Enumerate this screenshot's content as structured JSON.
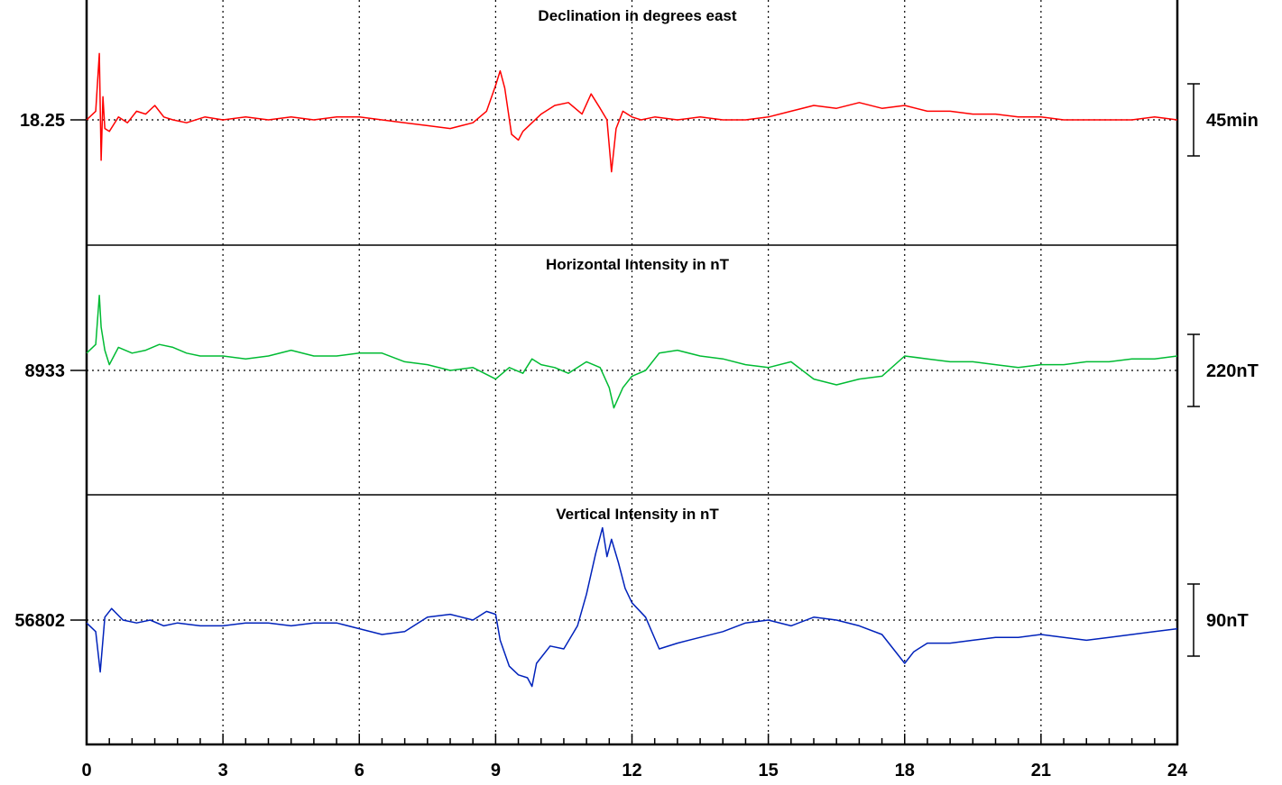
{
  "chart_data": {
    "type": "line",
    "x_axis": {
      "range": [
        0,
        24
      ],
      "major_ticks": [
        0,
        3,
        6,
        9,
        12,
        15,
        18,
        21,
        24
      ],
      "tick_labels": [
        "0",
        "3",
        "6",
        "9",
        "12",
        "15",
        "18",
        "21",
        "24"
      ],
      "minor_tick_step": 0.5,
      "grid": "dotted vertical lines at major ticks"
    },
    "panels": [
      {
        "title": "Declination in degrees east",
        "baseline_label": "18.25",
        "scale_label": "45min",
        "color": "#ff0000",
        "series": {
          "x": [
            0,
            0.2,
            0.28,
            0.32,
            0.36,
            0.4,
            0.5,
            0.7,
            0.9,
            1.1,
            1.3,
            1.5,
            1.7,
            1.9,
            2.2,
            2.6,
            3,
            3.5,
            4,
            4.5,
            5,
            5.5,
            6,
            6.5,
            7,
            7.5,
            8,
            8.5,
            8.8,
            9,
            9.1,
            9.2,
            9.35,
            9.5,
            9.6,
            9.8,
            10,
            10.3,
            10.6,
            10.9,
            11.1,
            11.3,
            11.45,
            11.55,
            11.65,
            11.8,
            12,
            12.2,
            12.5,
            13,
            13.5,
            14,
            14.5,
            15,
            15.5,
            16,
            16.5,
            17,
            17.5,
            18,
            18.5,
            19,
            19.5,
            20,
            20.5,
            21,
            21.5,
            22,
            22.5,
            23,
            23.5,
            24
          ],
          "y": [
            0.0,
            0.3,
            2.3,
            -1.4,
            0.8,
            -0.3,
            -0.4,
            0.1,
            -0.1,
            0.3,
            0.2,
            0.5,
            0.1,
            0.0,
            -0.1,
            0.1,
            0.0,
            0.1,
            0.0,
            0.1,
            0.0,
            0.1,
            0.1,
            0.0,
            -0.1,
            -0.2,
            -0.3,
            -0.1,
            0.3,
            1.2,
            1.7,
            1.1,
            -0.5,
            -0.7,
            -0.4,
            -0.1,
            0.2,
            0.5,
            0.6,
            0.2,
            0.9,
            0.4,
            0.0,
            -1.8,
            -0.3,
            0.3,
            0.1,
            0.0,
            0.1,
            0.0,
            0.1,
            0.0,
            0.0,
            0.1,
            0.3,
            0.5,
            0.4,
            0.6,
            0.4,
            0.5,
            0.3,
            0.3,
            0.2,
            0.2,
            0.1,
            0.1,
            0.0,
            0.0,
            0.0,
            0.0,
            0.1,
            0.0
          ]
        }
      },
      {
        "title": "Horizontal Intensity in nT",
        "baseline_label": "8933",
        "scale_label": "220nT",
        "color": "#00bb33",
        "series": {
          "x": [
            0,
            0.2,
            0.28,
            0.32,
            0.4,
            0.5,
            0.7,
            1.0,
            1.3,
            1.6,
            1.9,
            2.2,
            2.5,
            3,
            3.5,
            4,
            4.5,
            5,
            5.5,
            6,
            6.5,
            7,
            7.5,
            8,
            8.5,
            9,
            9.3,
            9.6,
            9.8,
            10,
            10.3,
            10.6,
            11,
            11.3,
            11.5,
            11.6,
            11.8,
            12,
            12.3,
            12.6,
            13,
            13.5,
            14,
            14.5,
            15,
            15.5,
            16,
            16.5,
            17,
            17.5,
            18,
            18.5,
            19,
            19.5,
            20,
            20.5,
            21,
            21.5,
            22,
            22.5,
            23,
            23.5,
            24
          ],
          "y": [
            0.6,
            0.9,
            2.6,
            1.5,
            0.7,
            0.2,
            0.8,
            0.6,
            0.7,
            0.9,
            0.8,
            0.6,
            0.5,
            0.5,
            0.4,
            0.5,
            0.7,
            0.5,
            0.5,
            0.6,
            0.6,
            0.3,
            0.2,
            0.0,
            0.1,
            -0.3,
            0.1,
            -0.1,
            0.4,
            0.2,
            0.1,
            -0.1,
            0.3,
            0.1,
            -0.6,
            -1.3,
            -0.6,
            -0.2,
            0.0,
            0.6,
            0.7,
            0.5,
            0.4,
            0.2,
            0.1,
            0.3,
            -0.3,
            -0.5,
            -0.3,
            -0.2,
            0.5,
            0.4,
            0.3,
            0.3,
            0.2,
            0.1,
            0.2,
            0.2,
            0.3,
            0.3,
            0.4,
            0.4,
            0.5
          ]
        }
      },
      {
        "title": "Vertical Intensity in nT",
        "baseline_label": "56802",
        "scale_label": "90nT",
        "color": "#0022bb",
        "series": {
          "x": [
            0,
            0.2,
            0.3,
            0.4,
            0.55,
            0.8,
            1.1,
            1.4,
            1.7,
            2,
            2.5,
            3,
            3.5,
            4,
            4.5,
            5,
            5.5,
            6,
            6.5,
            7,
            7.5,
            8,
            8.5,
            8.8,
            9,
            9.1,
            9.3,
            9.5,
            9.7,
            9.8,
            9.9,
            10.2,
            10.5,
            10.8,
            11,
            11.2,
            11.35,
            11.45,
            11.55,
            11.7,
            11.85,
            12,
            12.3,
            12.6,
            13,
            13.5,
            14,
            14.5,
            15,
            15.5,
            16,
            16.5,
            17,
            17.5,
            18,
            18.2,
            18.5,
            19,
            19.5,
            20,
            20.5,
            21,
            21.5,
            22,
            22.5,
            23,
            23.5,
            24
          ],
          "y": [
            -0.1,
            -0.4,
            -1.8,
            0.1,
            0.4,
            0.0,
            -0.1,
            0.0,
            -0.2,
            -0.1,
            -0.2,
            -0.2,
            -0.1,
            -0.1,
            -0.2,
            -0.1,
            -0.1,
            -0.3,
            -0.5,
            -0.4,
            0.1,
            0.2,
            0.0,
            0.3,
            0.2,
            -0.7,
            -1.6,
            -1.9,
            -2.0,
            -2.3,
            -1.5,
            -0.9,
            -1.0,
            -0.2,
            0.9,
            2.3,
            3.2,
            2.2,
            2.8,
            2.0,
            1.1,
            0.6,
            0.1,
            -1.0,
            -0.8,
            -0.6,
            -0.4,
            -0.1,
            0.0,
            -0.2,
            0.1,
            0.0,
            -0.2,
            -0.5,
            -1.5,
            -1.1,
            -0.8,
            -0.8,
            -0.7,
            -0.6,
            -0.6,
            -0.5,
            -0.6,
            -0.7,
            -0.6,
            -0.5,
            -0.4,
            -0.3
          ]
        }
      }
    ]
  }
}
